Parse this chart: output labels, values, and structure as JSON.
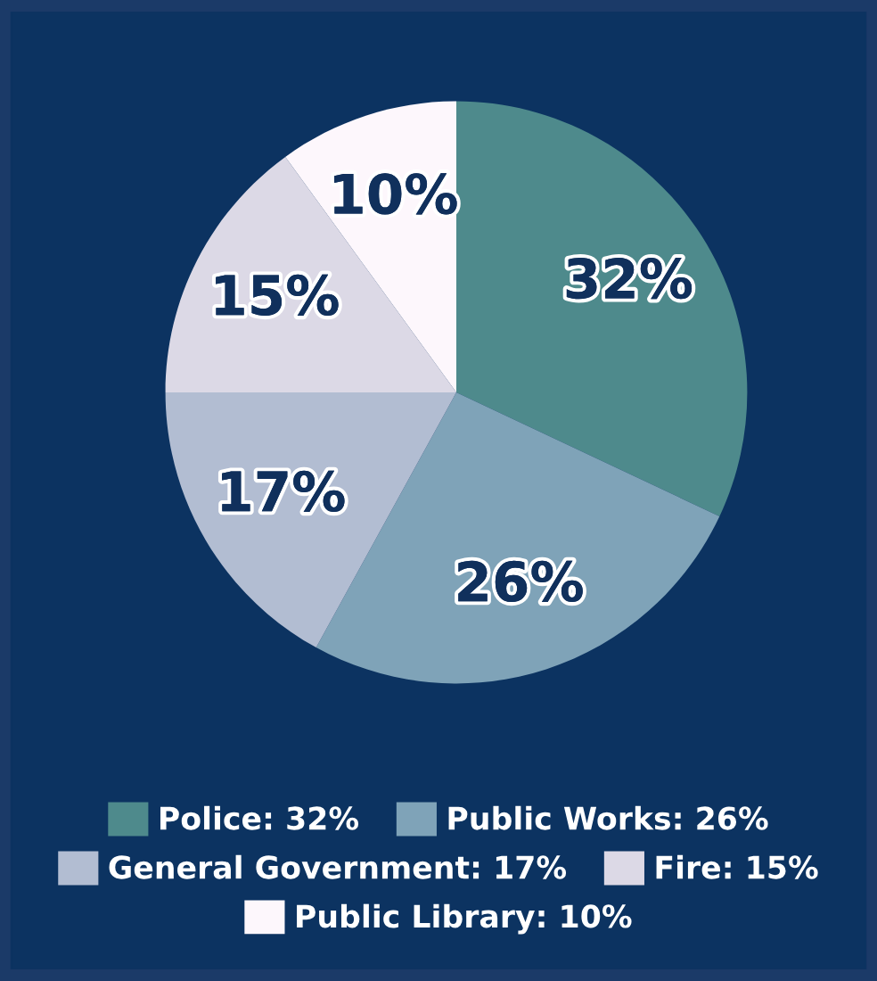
{
  "chart_data": {
    "type": "pie",
    "categories": [
      "Police",
      "Public Works",
      "General Government",
      "Fire",
      "Public Library"
    ],
    "values": [
      32,
      26,
      17,
      15,
      10
    ],
    "value_labels": [
      "32%",
      "26%",
      "17%",
      "15%",
      "10%"
    ],
    "colors": [
      "#4e8a8c",
      "#7fa3b8",
      "#b2bdd2",
      "#dcd9e6",
      "#fdf7fc"
    ],
    "legend": "bottom"
  }
}
